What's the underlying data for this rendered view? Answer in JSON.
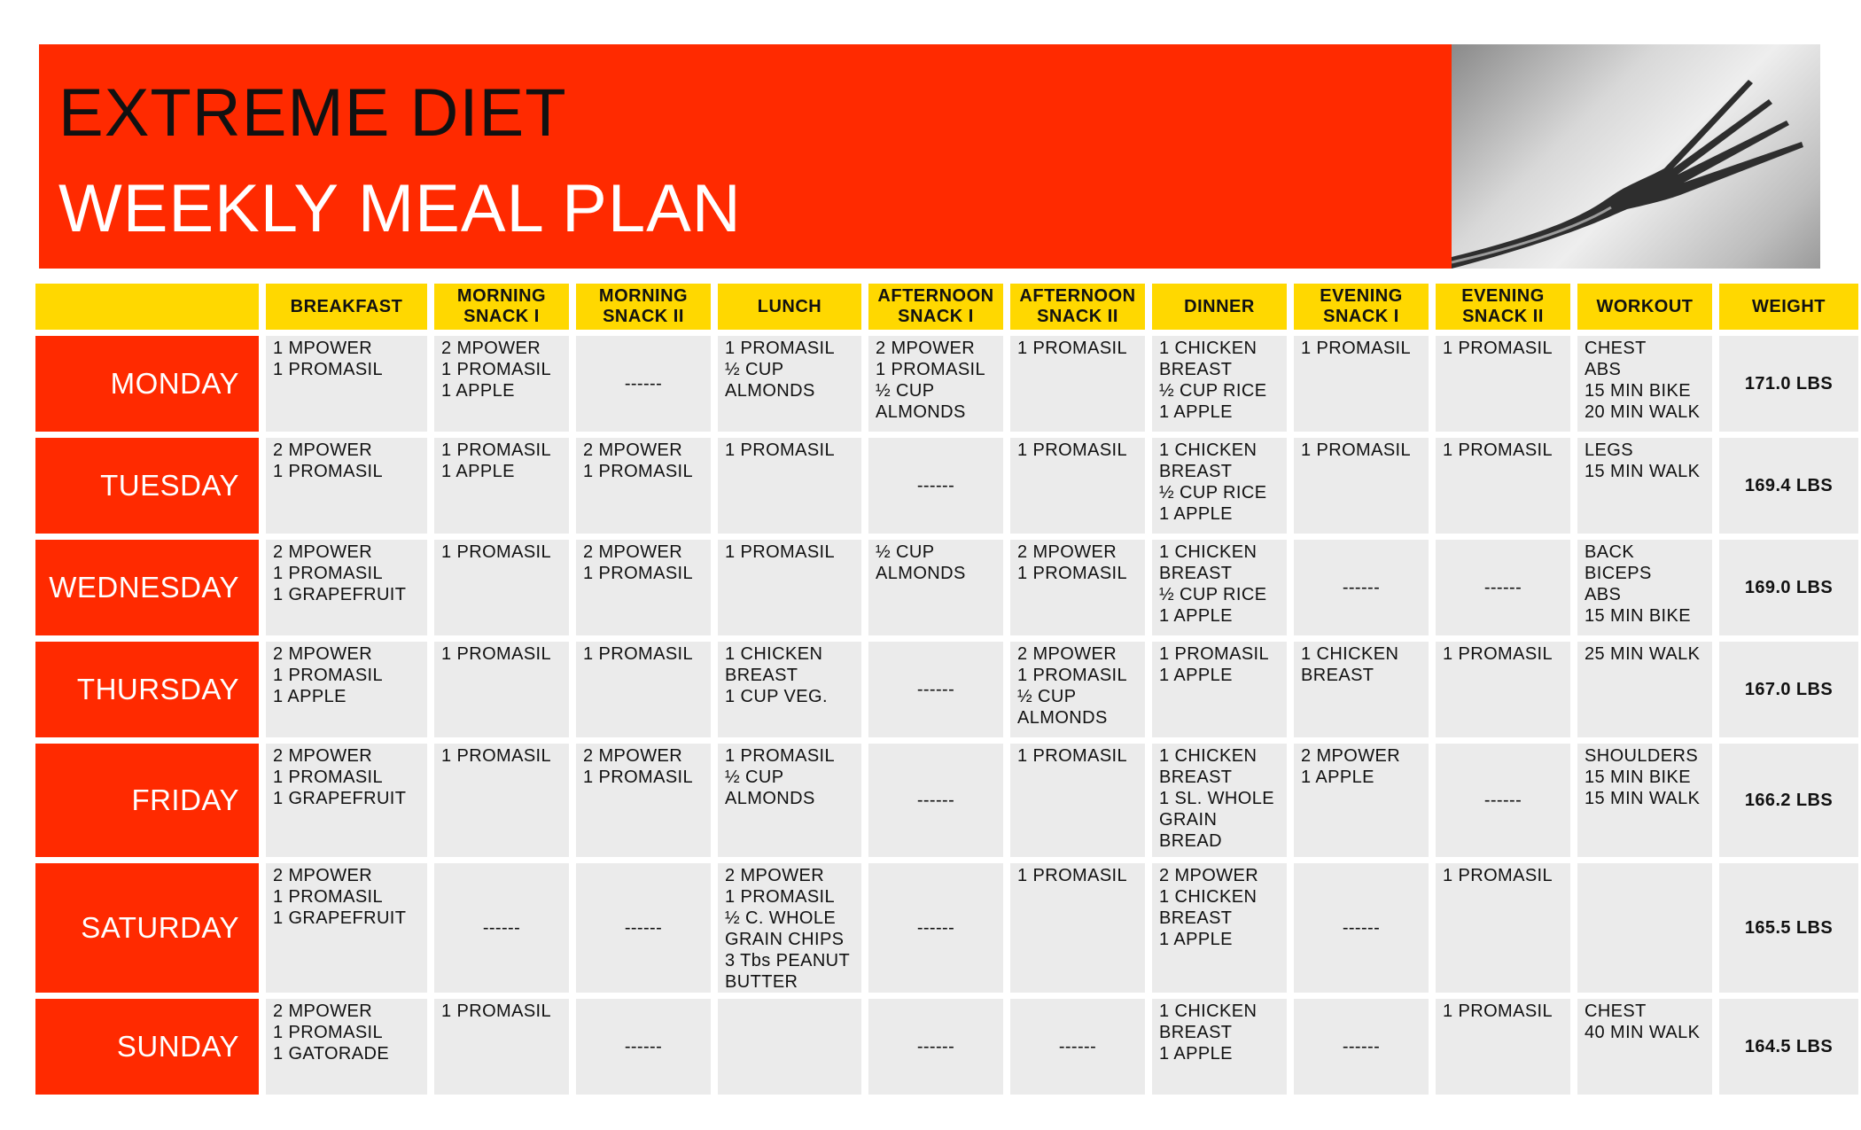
{
  "header": {
    "title_line1": "EXTREME DIET",
    "title_line2": "WEEKLY MEAL PLAN"
  },
  "columns": [
    "BREAKFAST",
    "MORNING\nSNACK I",
    "MORNING\nSNACK II",
    "LUNCH",
    "AFTERNOON\nSNACK I",
    "AFTERNOON\nSNACK II",
    "DINNER",
    "EVENING\nSNACK I",
    "EVENING\nSNACK II",
    "WORKOUT",
    "WEIGHT"
  ],
  "rows": [
    {
      "day": "MONDAY",
      "cells": [
        "1 MPOWER\n1 PROMASIL",
        "2 MPOWER\n1 PROMASIL\n1 APPLE",
        "------",
        "1 PROMASIL\n½ CUP\nALMONDS",
        "2 MPOWER\n1 PROMASIL\n½ CUP\nALMONDS",
        "1 PROMASIL",
        "1 CHICKEN\nBREAST\n½ CUP RICE\n1 APPLE",
        "1 PROMASIL",
        "1 PROMASIL",
        "CHEST\nABS\n15 MIN BIKE\n20 MIN WALK",
        "171.0 LBS"
      ]
    },
    {
      "day": "TUESDAY",
      "cells": [
        "2 MPOWER\n1 PROMASIL",
        "1 PROMASIL\n1 APPLE",
        "2 MPOWER\n1 PROMASIL",
        "1 PROMASIL",
        "------",
        "1 PROMASIL",
        "1 CHICKEN\nBREAST\n½ CUP RICE\n1 APPLE",
        "1 PROMASIL",
        "1 PROMASIL",
        "LEGS\n15 MIN WALK",
        "169.4 LBS"
      ]
    },
    {
      "day": "WEDNESDAY",
      "cells": [
        "2 MPOWER\n1 PROMASIL\n1 GRAPEFRUIT",
        "1 PROMASIL",
        "2 MPOWER\n1 PROMASIL",
        "1 PROMASIL",
        "½ CUP\nALMONDS",
        "2 MPOWER\n1 PROMASIL",
        "1 CHICKEN\nBREAST\n½ CUP RICE\n1 APPLE",
        "------",
        "------",
        "BACK\nBICEPS\nABS\n15 MIN BIKE",
        "169.0 LBS"
      ]
    },
    {
      "day": "THURSDAY",
      "cells": [
        "2 MPOWER\n1 PROMASIL\n1 APPLE",
        "1 PROMASIL",
        "1 PROMASIL",
        "1 CHICKEN\nBREAST\n1 CUP VEG.",
        "------",
        "2 MPOWER\n1 PROMASIL\n½ CUP\nALMONDS",
        "1 PROMASIL\n1 APPLE",
        "1 CHICKEN\nBREAST",
        "1 PROMASIL",
        "25 MIN WALK",
        "167.0 LBS"
      ]
    },
    {
      "day": "FRIDAY",
      "cells": [
        "2 MPOWER\n1 PROMASIL\n1 GRAPEFRUIT",
        "1 PROMASIL",
        "2 MPOWER\n1 PROMASIL",
        "1 PROMASIL\n½ CUP\nALMONDS",
        "------",
        "1 PROMASIL",
        "1 CHICKEN\nBREAST\n1 SL. WHOLE\nGRAIN\nBREAD",
        "2 MPOWER\n1 APPLE",
        "------",
        "SHOULDERS\n15 MIN BIKE\n15 MIN WALK",
        "166.2 LBS"
      ]
    },
    {
      "day": "SATURDAY",
      "cells": [
        "2 MPOWER\n1 PROMASIL\n1 GRAPEFRUIT",
        "------",
        "------",
        "2 MPOWER\n1 PROMASIL\n½ C. WHOLE\nGRAIN CHIPS\n3 Tbs PEANUT\nBUTTER",
        "------",
        "1 PROMASIL",
        "2 MPOWER\n1 CHICKEN\nBREAST\n1 APPLE",
        "------",
        "1 PROMASIL",
        "",
        "165.5 LBS"
      ]
    },
    {
      "day": "SUNDAY",
      "cells": [
        "2 MPOWER\n1 PROMASIL\n1 GATORADE",
        "1 PROMASIL",
        "------",
        "",
        "------",
        "------",
        "1 CHICKEN\nBREAST\n1 APPLE",
        "------",
        "1 PROMASIL",
        "CHEST\n40 MIN WALK",
        "164.5 LBS"
      ]
    }
  ]
}
